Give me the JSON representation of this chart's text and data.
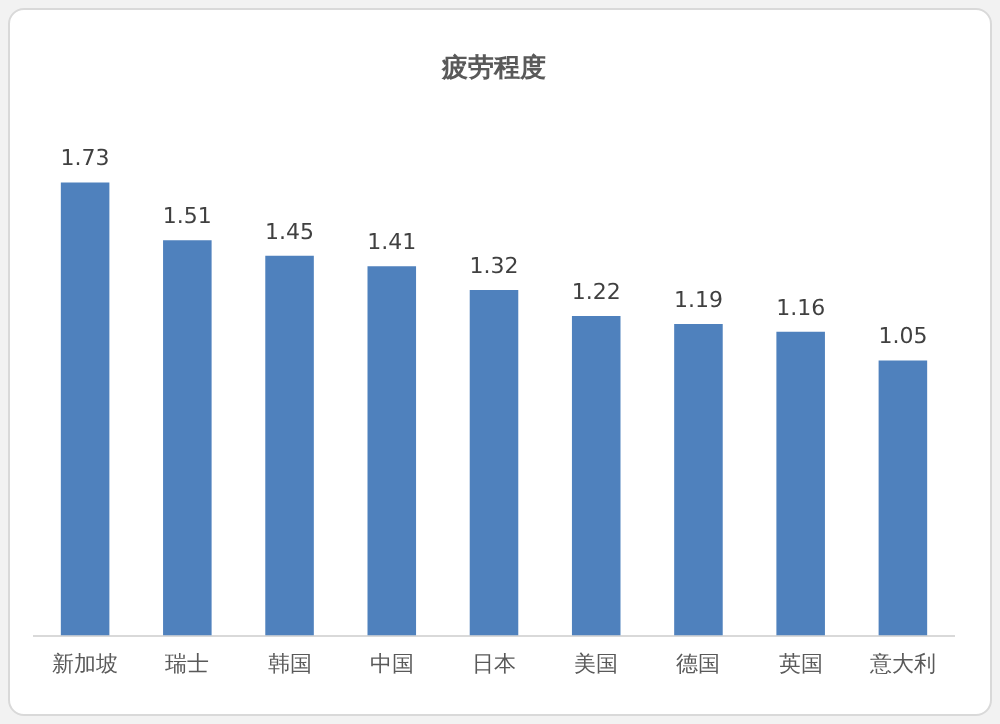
{
  "chart_data": {
    "type": "bar",
    "title": "疲劳程度",
    "categories": [
      "新加坡",
      "瑞士",
      "韩国",
      "中国",
      "日本",
      "美国",
      "德国",
      "英国",
      "意大利"
    ],
    "values": [
      1.73,
      1.51,
      1.45,
      1.41,
      1.32,
      1.22,
      1.19,
      1.16,
      1.05
    ],
    "color": "#4f81bd",
    "data_labels": true,
    "grid": false,
    "legend": false,
    "tick_labels": "x"
  }
}
